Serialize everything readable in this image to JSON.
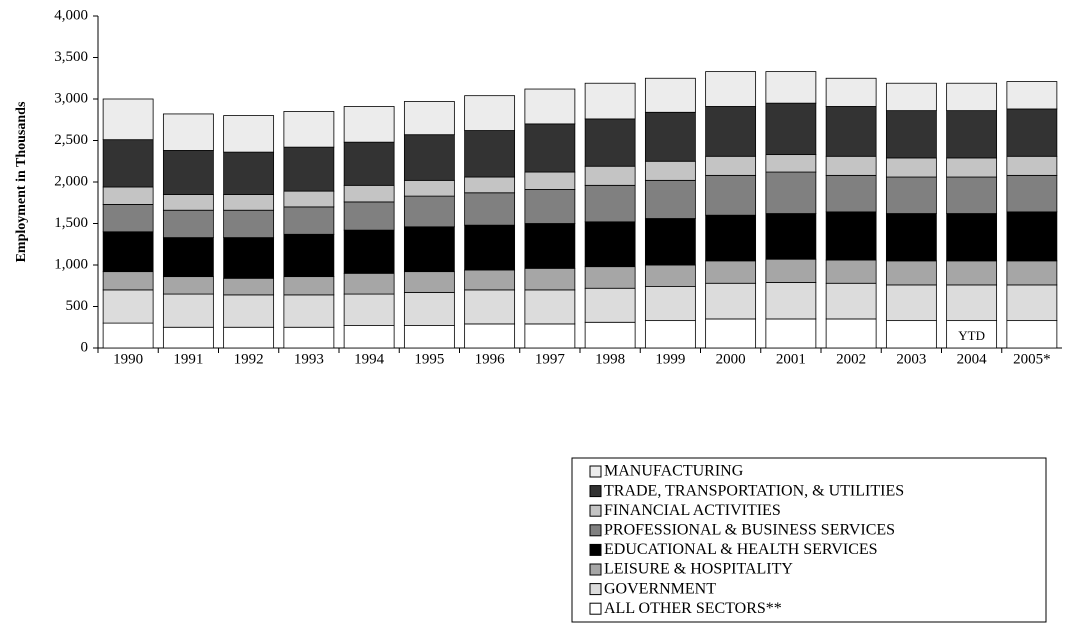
{
  "chart_data": {
    "type": "stacked_bar",
    "y_label": "Employment in Thousands",
    "annotation": "YTD",
    "categories": [
      "1990",
      "1991",
      "1992",
      "1993",
      "1994",
      "1995",
      "1996",
      "1997",
      "1998",
      "1999",
      "2000",
      "2001",
      "2002",
      "2003",
      "2004",
      "2005*"
    ],
    "ylim": [
      0,
      4000
    ],
    "yticks": [
      0,
      500,
      {
        "value": 1000,
        "label": "1,000"
      },
      {
        "value": 1500,
        "label": "1,500"
      },
      {
        "value": 2000,
        "label": "2,000"
      },
      {
        "value": 2500,
        "label": "2,500"
      },
      {
        "value": 3000,
        "label": "3,000"
      },
      {
        "value": 3500,
        "label": "3,500"
      },
      {
        "value": 4000,
        "label": "4,000"
      }
    ],
    "series": [
      {
        "name": "ALL OTHER SECTORS**",
        "color": "#ffffff",
        "values": [
          300,
          250,
          250,
          250,
          270,
          270,
          290,
          290,
          310,
          330,
          350,
          350,
          350,
          330,
          330,
          330
        ]
      },
      {
        "name": "GOVERNMENT",
        "color": "#dcdcdc",
        "values": [
          400,
          400,
          390,
          390,
          380,
          400,
          410,
          410,
          410,
          410,
          430,
          440,
          430,
          430,
          430,
          430
        ]
      },
      {
        "name": "LEISURE & HOSPITALITY",
        "color": "#a6a6a6",
        "values": [
          220,
          210,
          200,
          220,
          250,
          250,
          240,
          260,
          260,
          260,
          270,
          280,
          280,
          290,
          290,
          290
        ]
      },
      {
        "name": "EDUCATIONAL & HEALTH SERVICES",
        "color": "#000000",
        "values": [
          480,
          470,
          490,
          510,
          520,
          540,
          540,
          540,
          540,
          560,
          550,
          550,
          580,
          570,
          570,
          590
        ]
      },
      {
        "name": "PROFESSIONAL & BUSINESS SERVICES",
        "color": "#808080",
        "values": [
          330,
          330,
          330,
          330,
          340,
          370,
          390,
          410,
          440,
          460,
          480,
          500,
          440,
          440,
          440,
          440
        ]
      },
      {
        "name": "FINANCIAL ACTIVITIES",
        "color": "#c4c4c4",
        "values": [
          210,
          190,
          190,
          190,
          200,
          190,
          190,
          210,
          230,
          230,
          230,
          210,
          230,
          230,
          230,
          230
        ]
      },
      {
        "name": "TRADE, TRANSPORTATION, & UTILITIES",
        "color": "#333333",
        "values": [
          570,
          530,
          510,
          530,
          520,
          550,
          560,
          580,
          570,
          590,
          600,
          620,
          600,
          570,
          570,
          570
        ]
      },
      {
        "name": "MANUFACTURING",
        "color": "#ececec",
        "values": [
          490,
          440,
          440,
          430,
          430,
          400,
          420,
          420,
          430,
          410,
          420,
          380,
          340,
          330,
          330,
          330
        ]
      }
    ]
  }
}
